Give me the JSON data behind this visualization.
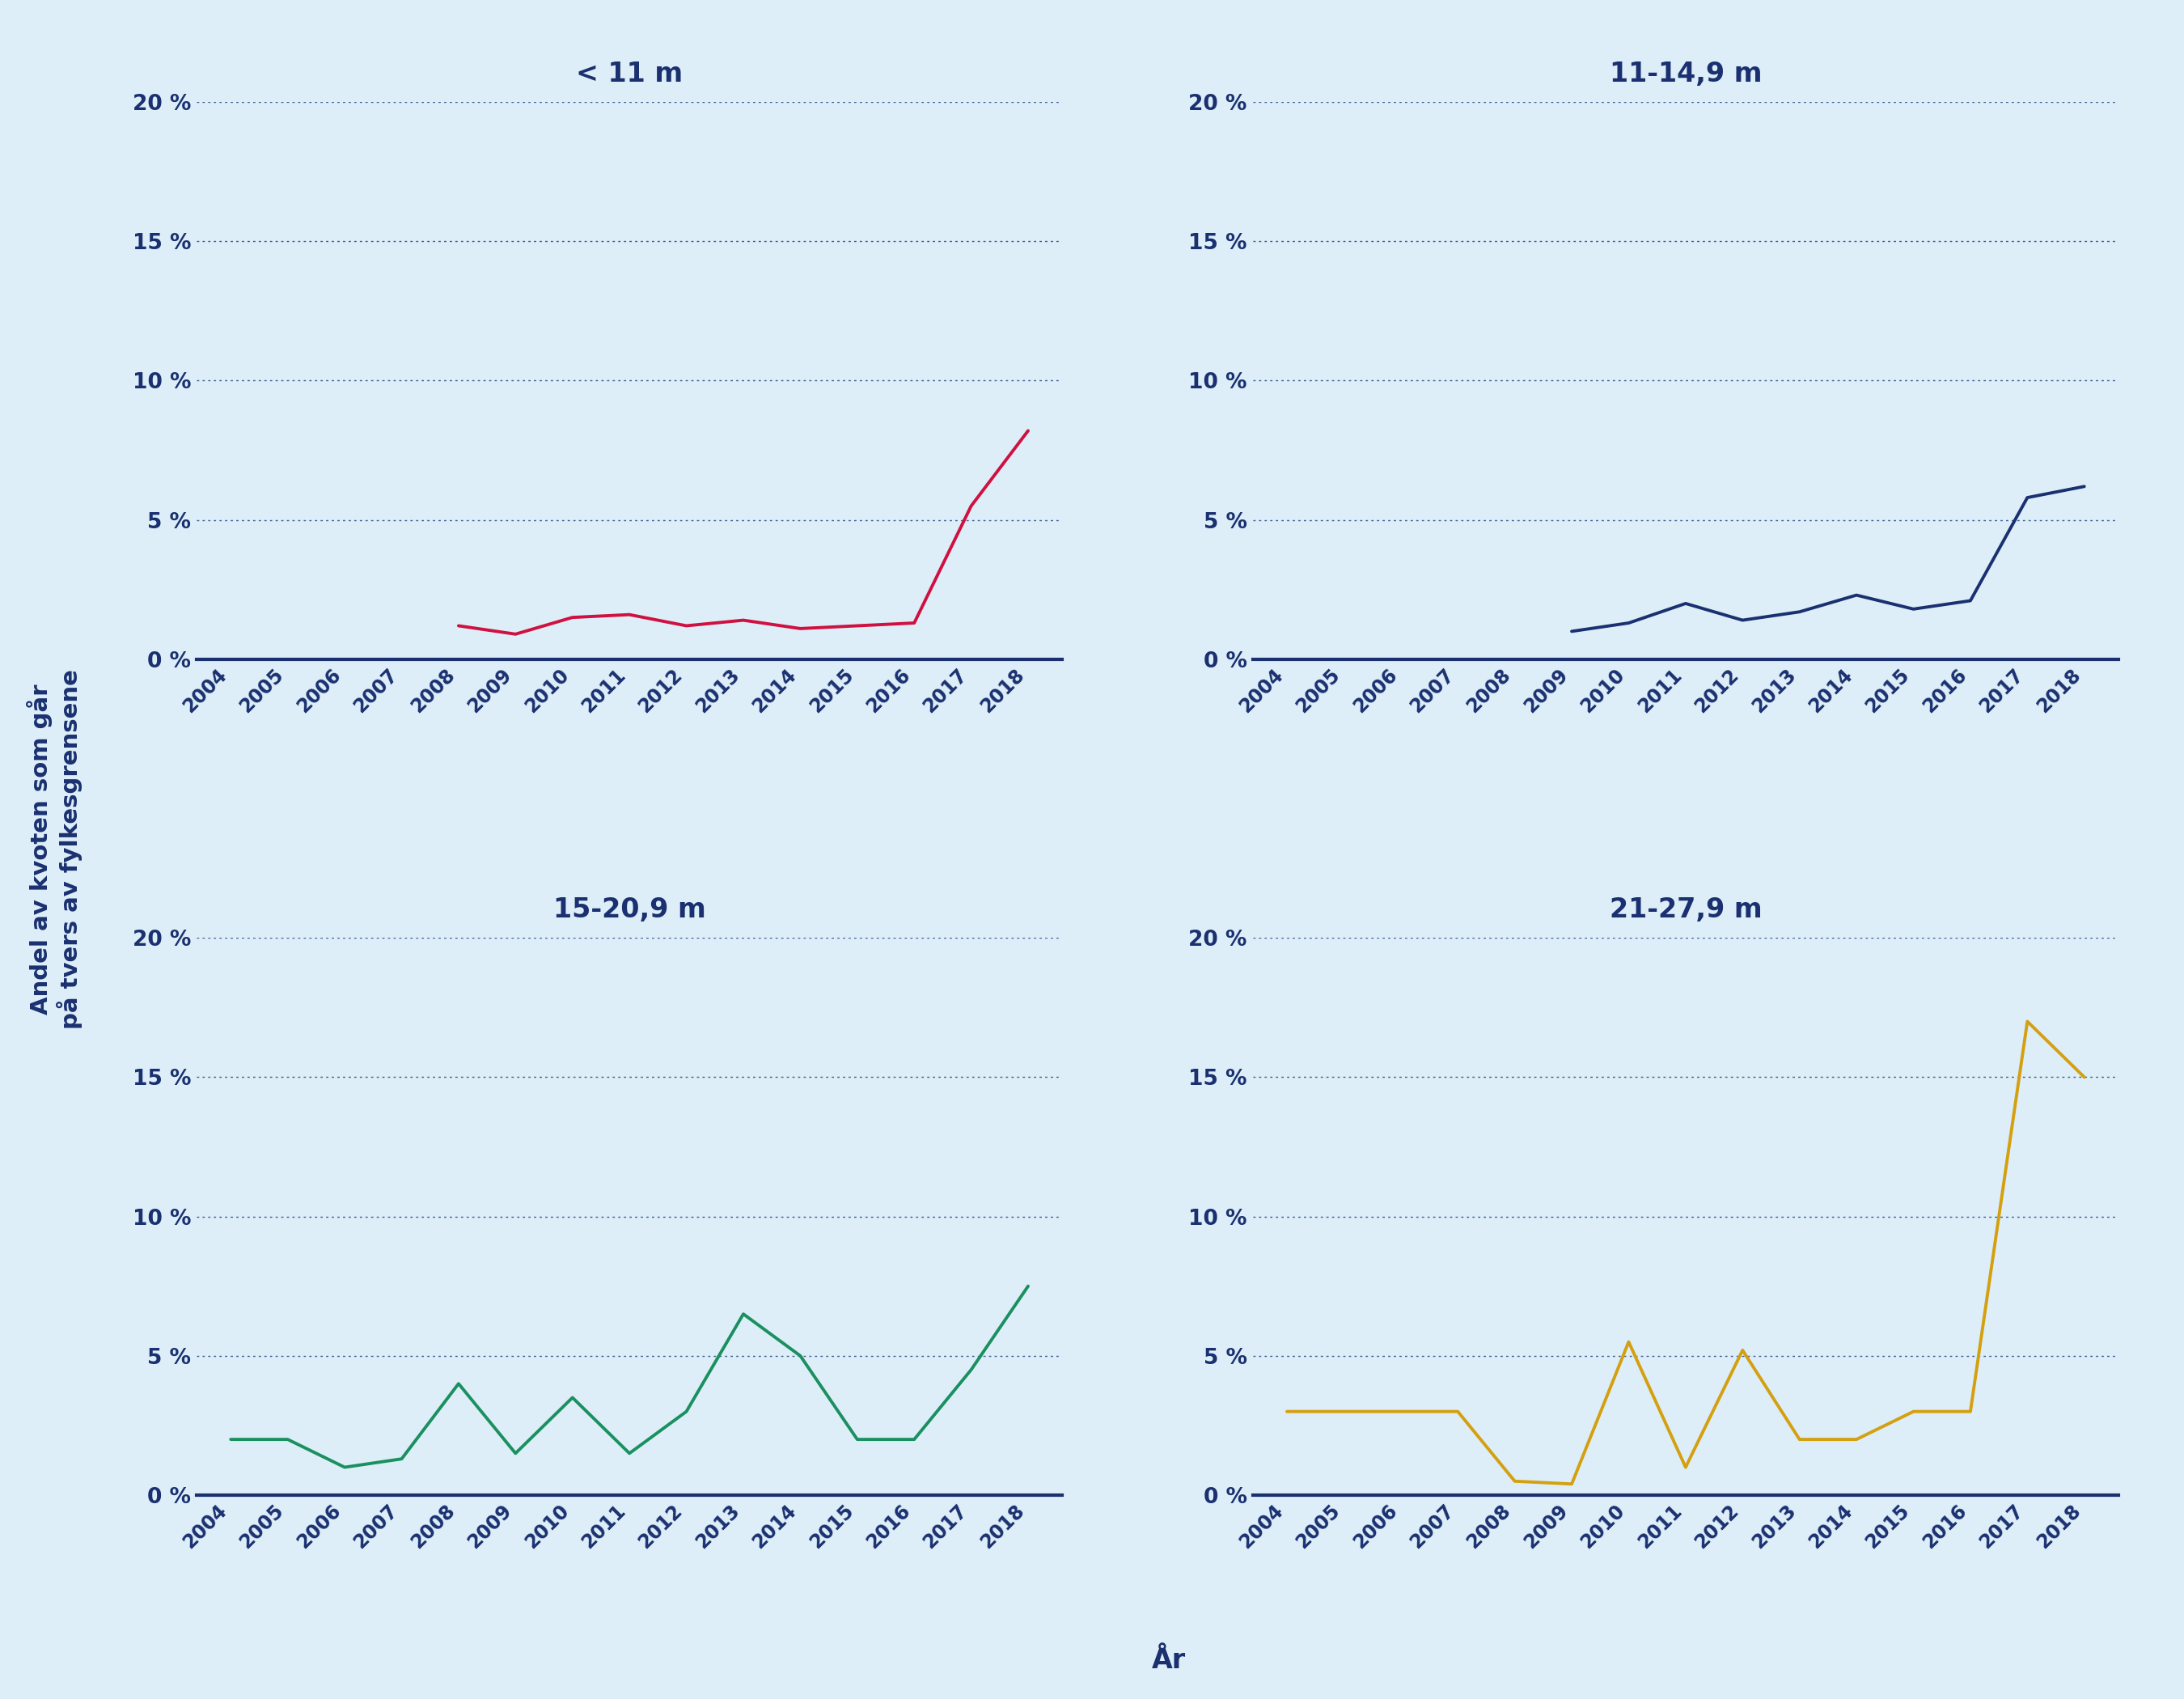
{
  "background_color": "#ddeef8",
  "text_color": "#1a3070",
  "grid_color": "#2a4a8a",
  "spine_color": "#1a3070",
  "titles": [
    "< 11 m",
    "11-14,9 m",
    "15-20,9 m",
    "21-27,9 m"
  ],
  "line_colors": [
    "#d01040",
    "#1a3070",
    "#1a9060",
    "#d4a010"
  ],
  "ylabel": "Andel av kvoten som går\npå tvers av fylkesgrensene",
  "xlabel": "År",
  "years": [
    2004,
    2005,
    2006,
    2007,
    2008,
    2009,
    2010,
    2011,
    2012,
    2013,
    2014,
    2015,
    2016,
    2017,
    2018
  ],
  "lt11_x": [
    2008,
    2009,
    2010,
    2011,
    2012,
    2013,
    2014,
    2015,
    2016,
    2017,
    2018
  ],
  "lt11_y": [
    1.2,
    0.9,
    1.5,
    1.6,
    1.2,
    1.4,
    1.1,
    1.2,
    1.3,
    5.5,
    8.2
  ],
  "d11_14_x": [
    2009,
    2010,
    2011,
    2012,
    2013,
    2014,
    2015,
    2016,
    2017,
    2018
  ],
  "d11_14_y": [
    1.0,
    1.3,
    2.0,
    1.4,
    1.7,
    2.3,
    1.8,
    2.1,
    5.8,
    6.2
  ],
  "d15_20_x": [
    2004,
    2005,
    2006,
    2007,
    2008,
    2009,
    2010,
    2011,
    2012,
    2013,
    2014,
    2015,
    2016,
    2017,
    2018
  ],
  "d15_20_y": [
    2.0,
    2.0,
    1.0,
    1.3,
    4.0,
    1.5,
    3.5,
    1.5,
    3.0,
    6.5,
    5.0,
    2.0,
    2.0,
    4.5,
    7.5
  ],
  "d21_27_x": [
    2004,
    2005,
    2006,
    2007,
    2008,
    2009,
    2010,
    2011,
    2012,
    2013,
    2014,
    2015,
    2016,
    2017,
    2018
  ],
  "d21_27_y": [
    3.0,
    3.0,
    3.0,
    3.0,
    0.5,
    0.4,
    5.5,
    1.0,
    5.2,
    2.0,
    2.0,
    3.0,
    3.0,
    17.0,
    15.0
  ],
  "ylim": [
    0,
    20
  ],
  "yticks": [
    0,
    5,
    10,
    15,
    20
  ],
  "ytick_labels": [
    "0 %",
    "5 %",
    "10 %",
    "15 %",
    "20 %"
  ],
  "line_width": 2.8,
  "title_fontsize": 24,
  "tick_fontsize": 19,
  "ylabel_fontsize": 21,
  "xlabel_fontsize": 24
}
